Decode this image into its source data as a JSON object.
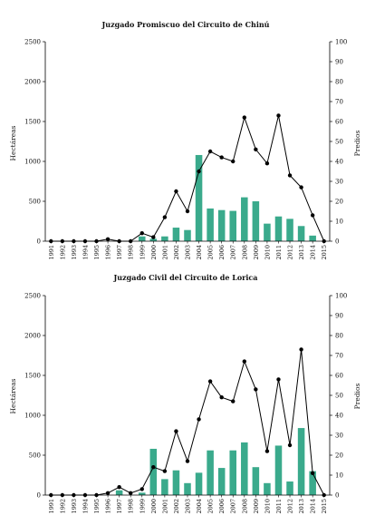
{
  "chart_data": [
    {
      "type": "bar+line",
      "title": "Juzgado Promiscuo del Circuito de Chinú",
      "ylabel": "Hectáreas",
      "y2label": "Predios",
      "ylim": [
        0,
        2500
      ],
      "y2lim": [
        0,
        100
      ],
      "yticks": [
        "0",
        "500",
        "1000",
        "1500",
        "2000",
        "2500"
      ],
      "y2ticks": [
        "0",
        "10",
        "20",
        "30",
        "40",
        "50",
        "60",
        "70",
        "80",
        "90",
        "100"
      ],
      "categories": [
        "1991",
        "1992",
        "1993",
        "1994",
        "1995",
        "1996",
        "1997",
        "1998",
        "1999",
        "2000",
        "2001",
        "2002",
        "2003",
        "2004",
        "2005",
        "2006",
        "2007",
        "2008",
        "2009",
        "2010",
        "2011",
        "2012",
        "2013",
        "2014",
        "2015"
      ],
      "bar_series": {
        "axis": "left",
        "color": "#3aaa8c",
        "values": [
          0,
          0,
          0,
          0,
          0,
          0,
          0,
          0,
          60,
          30,
          60,
          170,
          140,
          1080,
          410,
          390,
          380,
          550,
          500,
          220,
          310,
          280,
          190,
          70,
          0
        ]
      },
      "line_series": {
        "axis": "right",
        "color": "#000000",
        "values": [
          0,
          0,
          0,
          0,
          0,
          1,
          0,
          0,
          4,
          2,
          12,
          25,
          15,
          35,
          45,
          42,
          40,
          62,
          46,
          39,
          63,
          33,
          27,
          13,
          0
        ]
      },
      "grid": false
    },
    {
      "type": "bar+line",
      "title": "Juzgado Civil del Circuito de Lorica",
      "ylabel": "Hectáreas",
      "y2label": "Predios",
      "ylim": [
        0,
        2500
      ],
      "y2lim": [
        0,
        100
      ],
      "yticks": [
        "0",
        "500",
        "1000",
        "1500",
        "2000",
        "2500"
      ],
      "y2ticks": [
        "0",
        "10",
        "20",
        "30",
        "40",
        "50",
        "60",
        "70",
        "80",
        "90",
        "100"
      ],
      "categories": [
        "1991",
        "1992",
        "1993",
        "1994",
        "1995",
        "1996",
        "1997",
        "1998",
        "1999",
        "2000",
        "2001",
        "2002",
        "2003",
        "2004",
        "2005",
        "2006",
        "2007",
        "2008",
        "2009",
        "2010",
        "2011",
        "2012",
        "2013",
        "2014",
        "2015"
      ],
      "bar_series": {
        "axis": "left",
        "color": "#3aaa8c",
        "values": [
          0,
          0,
          0,
          0,
          0,
          0,
          60,
          0,
          30,
          580,
          200,
          310,
          150,
          280,
          560,
          340,
          560,
          660,
          350,
          150,
          620,
          170,
          840,
          300,
          0
        ]
      },
      "line_series": {
        "axis": "right",
        "color": "#000000",
        "values": [
          0,
          0,
          0,
          0,
          0,
          1,
          4,
          1,
          3,
          14,
          12,
          32,
          17,
          38,
          57,
          49,
          47,
          67,
          53,
          22,
          58,
          25,
          73,
          11,
          0
        ]
      },
      "grid": false
    }
  ]
}
